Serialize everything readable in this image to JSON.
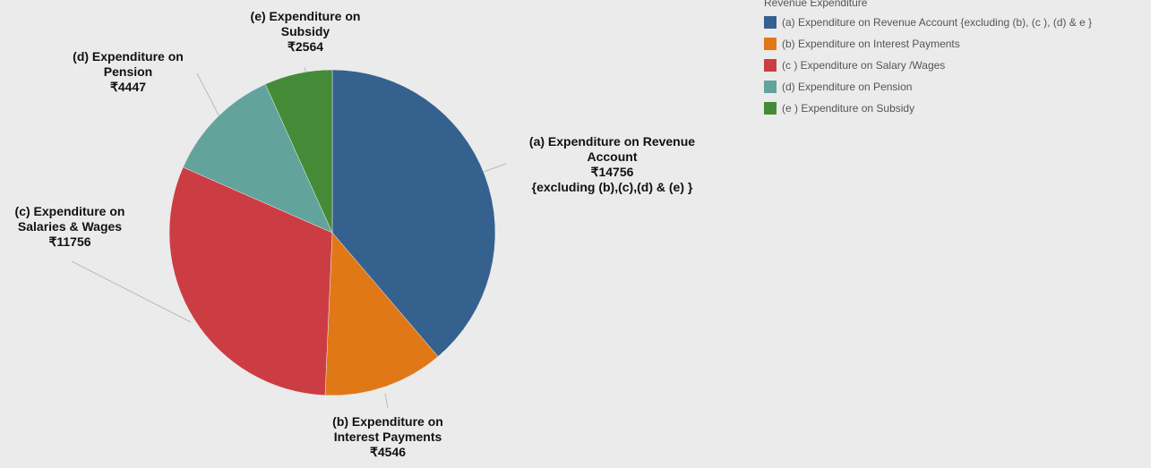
{
  "chart_data": {
    "type": "pie",
    "legend_title": "Revenue Expenditure",
    "categories": [
      "(a) Expenditure on Revenue Account {excluding (b), (c ), (d) & e }",
      "(b) Expenditure on Interest Payments",
      "(c ) Expenditure on Salary /Wages",
      "(d) Expenditure on Pension",
      "(e ) Expenditure on Subsidy"
    ],
    "slice_labels": [
      "(a) Expenditure on Revenue Account",
      "(b) Expenditure on Interest Payments",
      "(c) Expenditure on Salaries & Wages",
      "(d) Expenditure on Pension",
      "(e) Expenditure on Subsidy"
    ],
    "values": [
      14756,
      4546,
      11756,
      4447,
      2564
    ],
    "value_labels": [
      "₹14756",
      "₹4546",
      "₹11756",
      "₹4447",
      "₹2564"
    ],
    "annotation": "{excluding (b),(c),(d) & (e) }",
    "colors": [
      "#35618f",
      "#e07818",
      "#cc3d43",
      "#62a39c",
      "#458b37"
    ],
    "legend": "top-right"
  }
}
